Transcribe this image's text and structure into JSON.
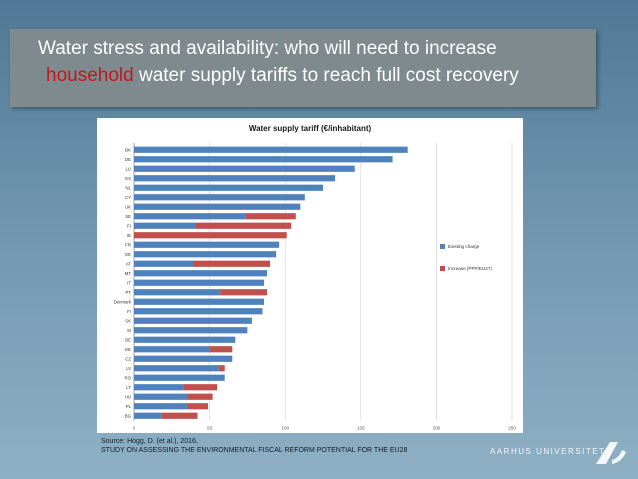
{
  "slide": {
    "title_part1": "Water stress and availability: who will need to increase",
    "title_highlight": "household",
    "title_part2": " water supply tariffs to reach full cost recovery",
    "source_line1": "Source: Hogg, D. (et al.), 2016,",
    "source_line2": "STUDY ON ASSESSING THE ENVIRONMENTAL FISCAL REFORM POTENTIAL FOR THE EU28",
    "logo_text": "AARHUS UNIVERSITET",
    "colors": {
      "background": "#6d93ad",
      "title_box": "#7f8a8f",
      "highlight": "#c4171c"
    }
  },
  "chart_data": {
    "type": "bar",
    "orientation": "horizontal",
    "stacked": true,
    "title": "Water supply tariff (€/inhabitant)",
    "categories": [
      "DK",
      "DE",
      "LU",
      "ES",
      "NL",
      "CY",
      "UK",
      "SE",
      "FI",
      "IE",
      "FR",
      "EE",
      "AT",
      "MT",
      "IT",
      "PT",
      "Denmark",
      "FI",
      "SK",
      "SI",
      "BE",
      "EE",
      "CZ",
      "LV",
      "RO",
      "LT",
      "HU",
      "PL",
      "BG"
    ],
    "series": [
      {
        "name": "Existing charge",
        "color": "#4f81bd",
        "values": [
          181,
          171,
          146,
          133,
          125,
          113,
          110,
          74,
          41,
          0,
          96,
          94,
          39,
          88,
          86,
          57,
          86,
          85,
          78,
          75,
          67,
          50,
          65,
          56,
          60,
          33,
          35,
          35,
          18
        ]
      },
      {
        "name": "Increase (PPP/EU27)",
        "color": "#c0504d",
        "values": [
          0,
          0,
          0,
          0,
          0,
          0,
          0,
          33,
          63,
          101,
          0,
          0,
          51,
          0,
          0,
          31,
          0,
          0,
          0,
          0,
          0,
          15,
          0,
          4,
          0,
          22,
          17,
          14,
          24
        ]
      }
    ],
    "xlim": [
      0,
      250
    ],
    "xticks": [
      0,
      50,
      100,
      150,
      200,
      250
    ],
    "grid": true,
    "legend_position": "right"
  }
}
